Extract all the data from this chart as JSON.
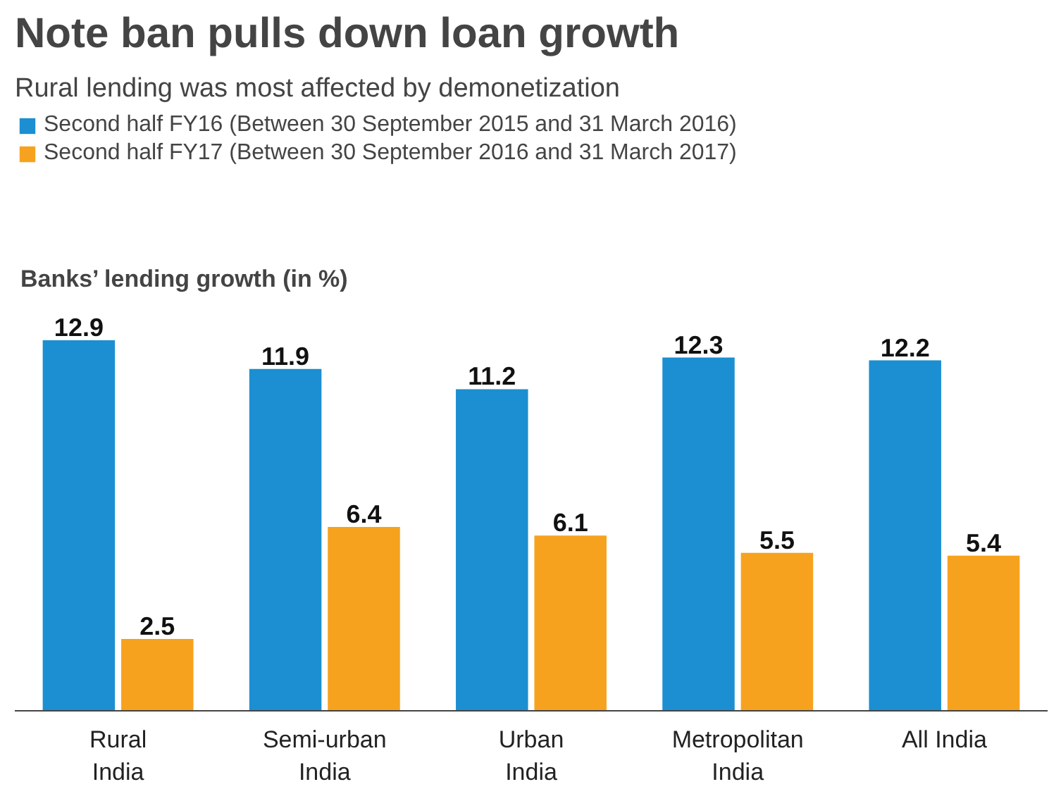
{
  "chart_data": {
    "type": "bar",
    "title": "Note ban pulls down loan growth",
    "subtitle": "Rural lending was most affected by demonetization",
    "ylabel": "Banks’ lending growth (in %)",
    "categories": [
      "Rural\nIndia",
      "Semi-urban\nIndia",
      "Urban\nIndia",
      "Metropolitan\nIndia",
      "All India"
    ],
    "series": [
      {
        "name": "Second half FY16 (Between 30 September 2015 and 31 March 2016)",
        "color": "#1b8fd2",
        "values": [
          12.9,
          11.9,
          11.2,
          12.3,
          12.2
        ]
      },
      {
        "name": "Second half FY17 (Between 30 September 2016 and 31 March 2017)",
        "color": "#f7a21e",
        "values": [
          2.5,
          6.4,
          6.1,
          5.5,
          5.4
        ]
      }
    ],
    "data_labels": true,
    "grid": false,
    "legend": "top"
  }
}
